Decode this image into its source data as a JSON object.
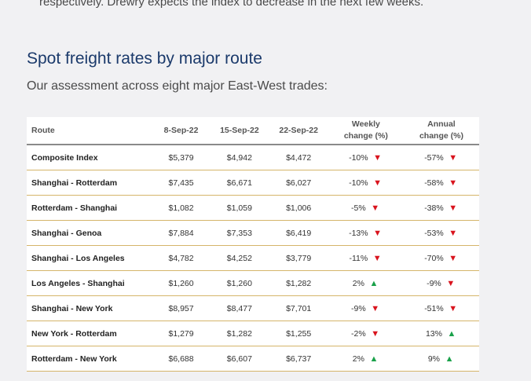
{
  "intro": {
    "text": "respectively. Drewry expects the index to decrease in the next few weeks."
  },
  "section": {
    "title": "Spot freight rates by major route",
    "subtitle": "Our assessment across eight major East-West trades:"
  },
  "colors": {
    "down": "#d9141e",
    "up": "#1aa14a",
    "title": "#1b3a6b",
    "rule": "#d5b56a"
  },
  "table": {
    "headers": {
      "route": "Route",
      "d1": "8-Sep-22",
      "d2": "15-Sep-22",
      "d3": "22-Sep-22",
      "weekly_1": "Weekly",
      "weekly_2": "change (%)",
      "annual_1": "Annual",
      "annual_2": "change (%)"
    },
    "rows": [
      {
        "route": "Composite Index",
        "d1": "$5,379",
        "d2": "$4,942",
        "d3": "$4,472",
        "weekly": "-10%",
        "weekly_dir": "down",
        "annual": "-57%",
        "annual_dir": "down"
      },
      {
        "route": "Shanghai - Rotterdam",
        "d1": "$7,435",
        "d2": "$6,671",
        "d3": "$6,027",
        "weekly": "-10%",
        "weekly_dir": "down",
        "annual": "-58%",
        "annual_dir": "down"
      },
      {
        "route": "Rotterdam - Shanghai",
        "d1": "$1,082",
        "d2": "$1,059",
        "d3": "$1,006",
        "weekly": "-5%",
        "weekly_dir": "down",
        "annual": "-38%",
        "annual_dir": "down"
      },
      {
        "route": "Shanghai - Genoa",
        "d1": "$7,884",
        "d2": "$7,353",
        "d3": "$6,419",
        "weekly": "-13%",
        "weekly_dir": "down",
        "annual": "-53%",
        "annual_dir": "down"
      },
      {
        "route": "Shanghai - Los Angeles",
        "d1": "$4,782",
        "d2": "$4,252",
        "d3": "$3,779",
        "weekly": "-11%",
        "weekly_dir": "down",
        "annual": "-70%",
        "annual_dir": "down"
      },
      {
        "route": "Los Angeles - Shanghai",
        "d1": "$1,260",
        "d2": "$1,260",
        "d3": "$1,282",
        "weekly": "2%",
        "weekly_dir": "up",
        "annual": "-9%",
        "annual_dir": "down"
      },
      {
        "route": "Shanghai - New York",
        "d1": "$8,957",
        "d2": "$8,477",
        "d3": "$7,701",
        "weekly": "-9%",
        "weekly_dir": "down",
        "annual": "-51%",
        "annual_dir": "down"
      },
      {
        "route": "New York - Rotterdam",
        "d1": "$1,279",
        "d2": "$1,282",
        "d3": "$1,255",
        "weekly": "-2%",
        "weekly_dir": "down",
        "annual": "13%",
        "annual_dir": "up"
      },
      {
        "route": "Rotterdam - New York",
        "d1": "$6,688",
        "d2": "$6,607",
        "d3": "$6,737",
        "weekly": "2%",
        "weekly_dir": "up",
        "annual": "9%",
        "annual_dir": "up"
      }
    ]
  }
}
